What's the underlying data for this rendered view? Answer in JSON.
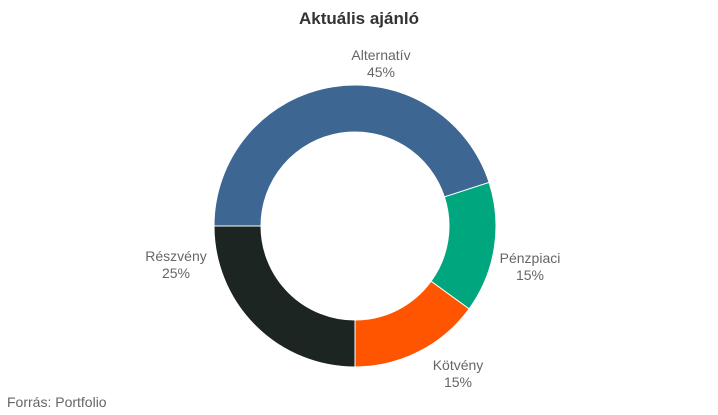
{
  "chart_data": {
    "type": "pie",
    "title": "Aktuális ajánló",
    "categories": [
      "Alternatív",
      "Pénzpiaci",
      "Kötvény",
      "Részvény"
    ],
    "values": [
      45,
      15,
      15,
      25
    ],
    "value_labels": [
      "45%",
      "15%",
      "15%",
      "25%"
    ],
    "colors": [
      "#3d6692",
      "#00a67d",
      "#ff5500",
      "#1c2521"
    ],
    "hole": "donut",
    "legend": "none"
  },
  "source": "Forrás: Portfolio"
}
